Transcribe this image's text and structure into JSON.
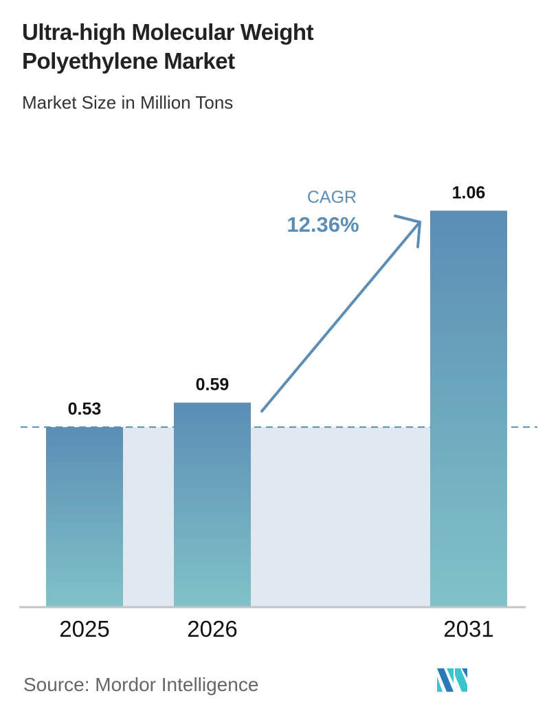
{
  "title": "Ultra-high Molecular Weight Polyethylene Market",
  "subtitle": "Market Size in Million Tons",
  "source": "Source:  Mordor Intelligence",
  "colors": {
    "bar_top": "#5b8db5",
    "bar_bottom": "#80c2c8",
    "band": "#dfe8f1",
    "accent": "#5b8db5",
    "axis": "#c4c4c4"
  },
  "chart_data": {
    "type": "bar",
    "categories": [
      "2025",
      "2026",
      "2031"
    ],
    "values": [
      0.53,
      0.59,
      1.06
    ],
    "data_labels": [
      "0.53",
      "0.59",
      "1.06"
    ],
    "annotation": {
      "label": "CAGR",
      "value": "12.36%"
    },
    "grid": false,
    "legend": "none"
  }
}
